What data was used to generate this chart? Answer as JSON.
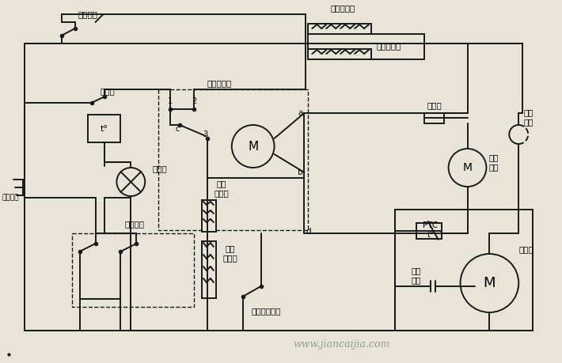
{
  "bg_color": "#e8e4d8",
  "line_color": "#1a1a1a",
  "watermark": "www.jiancaijia.com",
  "labels": {
    "qiehuan": "切换开关",
    "dongyong": "冬用加热器",
    "wenkong_jia": "温控加热器",
    "huashuang_timer": "化霜定时器",
    "wenkong": "温控器",
    "rong_duan": "熔断器",
    "re_ji": "热继\n电器",
    "feng_dian": "风扇\n电机",
    "zhao_ming": "照明灯",
    "dian_yuan": "电源插头",
    "an_niu": "按钮开关",
    "wendu_rd": "温度\n熔断器",
    "hua_jia": "化霜\n加热丝",
    "shuang_jin": "双金属片开关",
    "PTC": "PTC",
    "to2": "t°",
    "qi_dian": "启动\n电容",
    "ya_suo": "压缩机",
    "label_a": "a",
    "label_b": "b",
    "label_c": "c",
    "label_d": "d",
    "label_1": "1",
    "label_2": "2",
    "label_3": "3",
    "to": "t°"
  }
}
